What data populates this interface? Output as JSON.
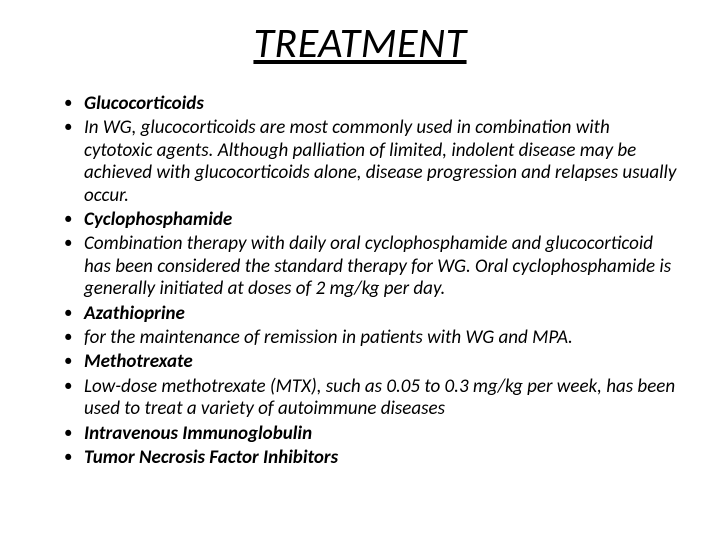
{
  "slide": {
    "title": "TREATMENT",
    "title_fontsize": 42,
    "title_style": {
      "italic": true,
      "underline": true,
      "color": "#000000"
    },
    "body_fontsize": 19,
    "body_color": "#000000",
    "background_color": "#ffffff",
    "bullets": [
      {
        "text": "Glucocorticoids",
        "bold": true,
        "italic": true
      },
      {
        "text": "In WG, glucocorticoids are most commonly used in combination with cytotoxic agents. Although palliation of limited, indolent disease may be achieved with glucocorticoids alone, disease progression and relapses usually occur.",
        "bold": false,
        "italic": true
      },
      {
        "text": "Cyclophosphamide",
        "bold": true,
        "italic": true
      },
      {
        "text": "Combination therapy with daily oral cyclophosphamide and glucocorticoid has been considered the standard therapy for WG.   Oral cyclophosphamide is generally initiated at doses of 2 mg/kg per day.",
        "bold": false,
        "italic": true
      },
      {
        "text": "Azathioprine",
        "bold": true,
        "italic": true
      },
      {
        "text": "for the maintenance of remission in patients with WG and MPA.",
        "bold": false,
        "italic": true
      },
      {
        "text": "Methotrexate",
        "bold": true,
        "italic": true
      },
      {
        "text": "Low-dose methotrexate (MTX), such as 0.05 to 0.3 mg/kg per week, has been used to treat a variety of autoimmune diseases",
        "bold": false,
        "italic": true
      },
      {
        "text": "Intravenous Immunoglobulin",
        "bold": true,
        "italic": true
      },
      {
        "text": "Tumor Necrosis Factor Inhibitors",
        "bold": true,
        "italic": true
      }
    ]
  }
}
